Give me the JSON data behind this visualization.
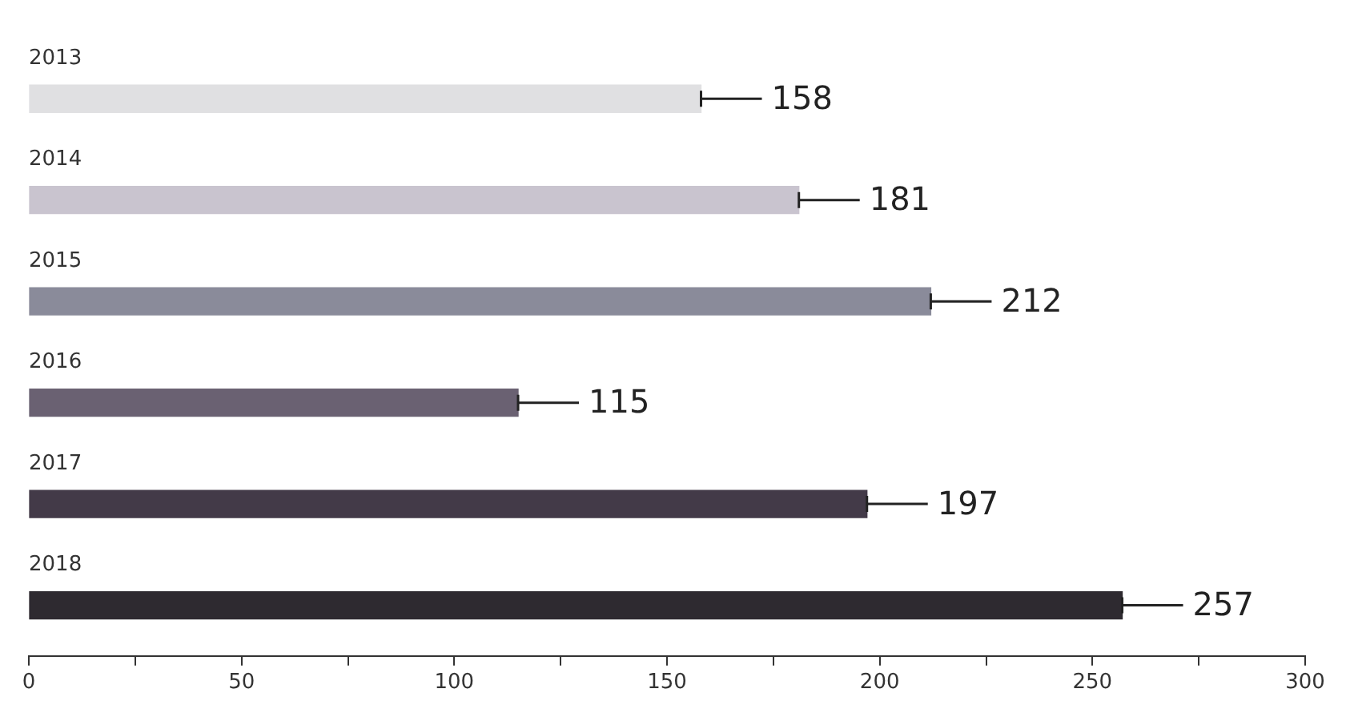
{
  "chart_data": {
    "type": "bar",
    "orientation": "horizontal",
    "categories": [
      "2013",
      "2014",
      "2015",
      "2016",
      "2017",
      "2018"
    ],
    "values": [
      158,
      181,
      212,
      115,
      197,
      257
    ],
    "colors": [
      "#e0e0e2",
      "#c9c4cf",
      "#8a8b9a",
      "#6a6172",
      "#433a48",
      "#2e2a30"
    ],
    "xlim": [
      0,
      300
    ],
    "xticks": [
      0,
      {
        "value": 25,
        "label": null
      },
      50,
      {
        "value": 75,
        "label": null
      },
      100,
      {
        "value": 125,
        "label": null
      },
      150,
      {
        "value": 175,
        "label": null
      },
      200,
      {
        "value": 225,
        "label": null
      },
      250,
      {
        "value": 275,
        "label": null
      },
      300
    ],
    "data_labels": true,
    "grid": false,
    "legend": false
  }
}
